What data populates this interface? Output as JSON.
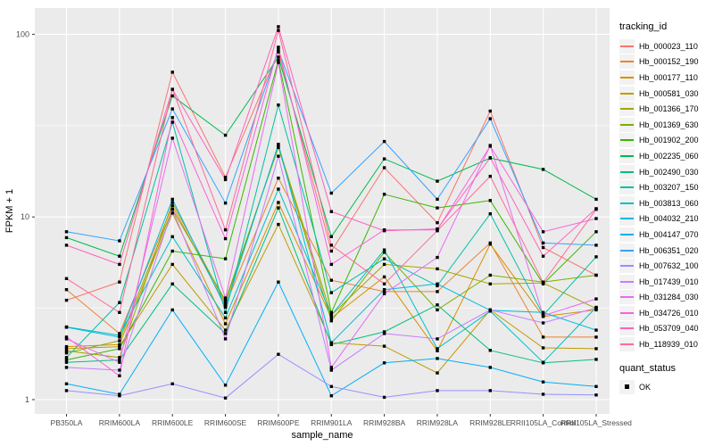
{
  "chart_data": {
    "type": "line",
    "title": "",
    "xlabel": "sample_name",
    "ylabel": "FPKM + 1",
    "y_scale": "log10",
    "y_ticks": [
      1,
      10,
      100
    ],
    "y_minor_ticks": [
      3.162,
      31.623
    ],
    "ylim": [
      0.86,
      140
    ],
    "grid": true,
    "legend_position": "right",
    "legend_title": "tracking_id",
    "point_legend": {
      "title": "quant_status",
      "label": "OK",
      "shape": "filled-black-square"
    },
    "panel_bg": "#EBEBEB",
    "grid_color": "#FFFFFF",
    "tick_label_color": "#4D4D4D",
    "axis_title_color": "#000000",
    "point_color": "#000000",
    "categories": [
      "PB350LA",
      "RRIM600LA",
      "RRIM600LE",
      "RRIM600SE",
      "RRIM600PE",
      "RRIM901LA",
      "RRIM928BA",
      "RRIM928LA",
      "RRIM928LE",
      "RRII105LA_Control",
      "RRII105LA_Stressed"
    ],
    "series": [
      {
        "name": "Hb_000023_110",
        "color": "#F8766D",
        "values": [
          3.5,
          4.4,
          62,
          16.5,
          80,
          6.5,
          18.6,
          9.3,
          38,
          6.8,
          4.8
        ]
      },
      {
        "name": "Hb_000152_190",
        "color": "#EA8331",
        "values": [
          4.0,
          2.3,
          11.5,
          3.3,
          16.3,
          4.5,
          3.9,
          3.9,
          7.2,
          2.2,
          2.2
        ]
      },
      {
        "name": "Hb_000177_110",
        "color": "#D89000",
        "values": [
          1.95,
          2.0,
          10.5,
          2.6,
          12.0,
          2.8,
          4.7,
          1.85,
          7.1,
          2.85,
          3.1
        ]
      },
      {
        "name": "Hb_000581_030",
        "color": "#C09B00",
        "values": [
          1.9,
          1.95,
          5.5,
          2.4,
          9.1,
          2.05,
          1.96,
          1.4,
          3.1,
          1.92,
          1.9
        ]
      },
      {
        "name": "Hb_001366_170",
        "color": "#A3A500",
        "values": [
          1.85,
          1.7,
          12.0,
          3.4,
          24.5,
          2.9,
          5.5,
          5.2,
          4.3,
          4.35,
          3.15
        ]
      },
      {
        "name": "Hb_001369_630",
        "color": "#7CAE00",
        "values": [
          1.8,
          2.1,
          11.0,
          3.5,
          24.0,
          2.7,
          6.4,
          3.1,
          4.8,
          4.4,
          4.8
        ]
      },
      {
        "name": "Hb_001902_200",
        "color": "#39B600",
        "values": [
          1.65,
          1.9,
          6.5,
          5.9,
          72,
          3.0,
          13.3,
          11.2,
          12.3,
          4.3,
          8.3
        ]
      },
      {
        "name": "Hb_002235_060",
        "color": "#00BB4E",
        "values": [
          7.7,
          6.1,
          46,
          28,
          75,
          7.8,
          20.8,
          15.7,
          21,
          18.2,
          12.5
        ]
      },
      {
        "name": "Hb_002490_030",
        "color": "#00BF7D",
        "values": [
          1.6,
          1.65,
          4.3,
          2.3,
          11.2,
          2.0,
          2.35,
          3.3,
          1.86,
          1.59,
          1.66
        ]
      },
      {
        "name": "Hb_003207_150",
        "color": "#00C1A3",
        "values": [
          1.7,
          3.4,
          33,
          3.0,
          41,
          3.85,
          5.9,
          4.2,
          10.4,
          2.9,
          6.05
        ]
      },
      {
        "name": "Hb_003813_060",
        "color": "#00BFC4",
        "values": [
          2.5,
          2.25,
          7.8,
          2.8,
          14.2,
          2.9,
          6.6,
          1.9,
          3.05,
          1.6,
          3.2
        ]
      },
      {
        "name": "Hb_004032_210",
        "color": "#00BAE0",
        "values": [
          2.49,
          2.2,
          12.5,
          3.2,
          25,
          2.05,
          4.0,
          4.3,
          3.08,
          3.0,
          2.4
        ]
      },
      {
        "name": "Hb_004147_070",
        "color": "#00B0F6",
        "values": [
          1.22,
          1.07,
          3.1,
          1.2,
          4.4,
          1.05,
          1.59,
          1.68,
          1.5,
          1.25,
          1.18
        ]
      },
      {
        "name": "Hb_006351_020",
        "color": "#35A2FF",
        "values": [
          8.3,
          7.4,
          39,
          11.9,
          82,
          13.5,
          25.9,
          12.5,
          34.5,
          7.2,
          7.0
        ]
      },
      {
        "name": "Hb_007632_100",
        "color": "#9590FF",
        "values": [
          1.12,
          1.05,
          1.22,
          1.02,
          1.77,
          1.18,
          1.03,
          1.12,
          1.12,
          1.07,
          1.06
        ]
      },
      {
        "name": "Hb_017439_010",
        "color": "#C77CFF",
        "values": [
          1.5,
          1.45,
          11.0,
          2.15,
          21.5,
          1.45,
          2.3,
          2.15,
          3.1,
          2.63,
          3.18
        ]
      },
      {
        "name": "Hb_031284_030",
        "color": "#E76BF3",
        "values": [
          2.15,
          1.6,
          27,
          3.6,
          70,
          1.5,
          3.8,
          6.0,
          24.6,
          2.88,
          3.56
        ]
      },
      {
        "name": "Hb_034726_010",
        "color": "#FA62DB",
        "values": [
          2.2,
          1.35,
          35,
          7.6,
          85,
          5.5,
          8.5,
          8.5,
          24.4,
          8.3,
          9.8
        ]
      },
      {
        "name": "Hb_053709_040",
        "color": "#FF62BC",
        "values": [
          7.0,
          5.5,
          50,
          16,
          110,
          10.7,
          8.4,
          8.6,
          21.1,
          6.1,
          11.1
        ]
      },
      {
        "name": "Hb_118939_010",
        "color": "#FF6A98",
        "values": [
          4.6,
          3.0,
          50,
          8.5,
          105,
          7.0,
          4.3,
          8.4,
          16.7,
          4.37,
          11.0
        ]
      }
    ]
  }
}
